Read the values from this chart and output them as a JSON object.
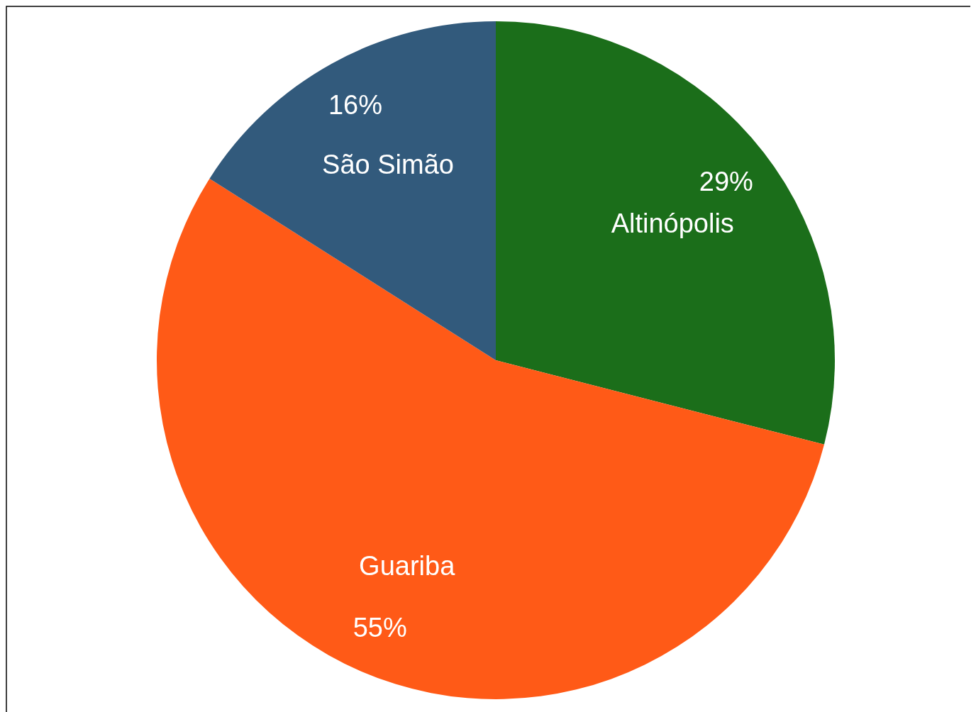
{
  "chart_data": {
    "type": "pie",
    "categories": [
      "Altinópolis",
      "Guariba",
      "São Simão"
    ],
    "values": [
      29,
      55,
      16
    ],
    "colors": [
      "#1b6e1a",
      "#ff5a17",
      "#325a7c"
    ],
    "value_labels": [
      "29%",
      "55%",
      "16%"
    ]
  }
}
